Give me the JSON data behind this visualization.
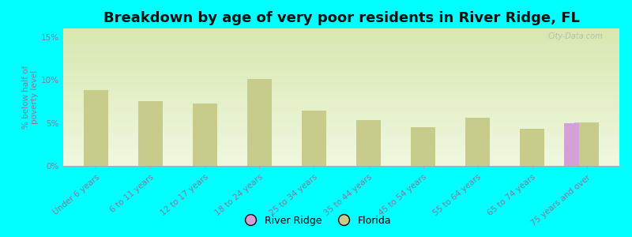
{
  "title": "Breakdown by age of very poor residents in River Ridge, FL",
  "ylabel": "% below half of\npoverty level",
  "categories": [
    "Under 6 years",
    "6 to 11 years",
    "12 to 17 years",
    "18 to 24 years",
    "25 to 34 years",
    "35 to 44 years",
    "45 to 54 years",
    "55 to 64 years",
    "65 to 74 years",
    "75 years and over"
  ],
  "florida_values": [
    8.8,
    7.5,
    7.3,
    10.1,
    6.4,
    5.3,
    4.5,
    5.6,
    4.3,
    5.1
  ],
  "river_ridge_values": [
    null,
    null,
    null,
    null,
    null,
    null,
    null,
    null,
    null,
    5.0
  ],
  "florida_color": "#c8cc8a",
  "river_ridge_color": "#d4a0d8",
  "background_color": "#00ffff",
  "plot_bg_top": "#d8e8b0",
  "plot_bg_bottom": "#f0f8e0",
  "ylim": [
    0,
    16
  ],
  "yticks": [
    0,
    5,
    10,
    15
  ],
  "ytick_labels": [
    "0%",
    "5%",
    "10%",
    "15%"
  ],
  "title_fontsize": 13,
  "label_fontsize": 7.5,
  "tick_color": "#887799",
  "watermark": "City-Data.com",
  "bar_width": 0.28
}
